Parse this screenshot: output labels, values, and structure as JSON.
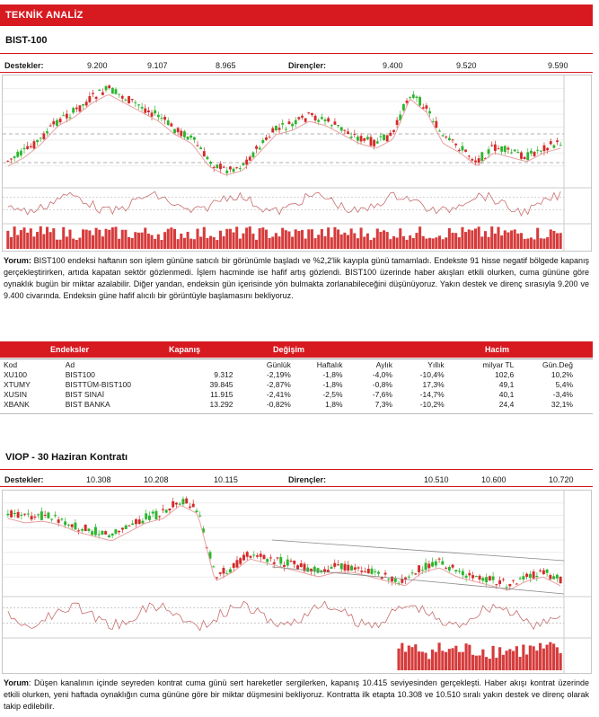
{
  "header": {
    "title": "TEKNİK ANALİZ"
  },
  "bist": {
    "title": "BIST-100",
    "support_label": "Destekler:",
    "supports": [
      "9.200",
      "9.107",
      "8.965"
    ],
    "resistance_label": "Dirençler:",
    "resistances": [
      "9.400",
      "9.520",
      "9.590"
    ],
    "comment_label": "Yorum:",
    "comment": "BIST100 endeksi haftanın son işlem gününe satıcılı bir görünümle başladı ve %2,2'lik kayıpla günü tamamladı. Endekste 91 hisse negatif bölgede kapanış gerçekleştirirken, artıda kapatan sektör gözlenmedi. İşlem hacminde ise hafif artış gözlendi. BIST100 üzerinde haber akışları etkili olurken, cuma gününe göre oynaklık bugün bir miktar azalabilir. Diğer yandan, endeksin gün içerisinde yön bulmakta zorlanabileceğini düşünüyoruz. Yakın destek ve direnç sırasıyla 9.200 ve 9.400 civarında. Endeksin güne hafif alıcılı bir görüntüyle başlamasını bekliyoruz."
  },
  "index_table": {
    "group_headers": {
      "endeksler": "Endeksler",
      "kapanis": "Kapanış",
      "degisim": "Değişim",
      "hacim": "Hacim"
    },
    "col_headers": {
      "kod": "Kod",
      "ad": "Ad",
      "gunluk": "Günlük",
      "haftalik": "Haftalık",
      "aylik": "Aylık",
      "yillik": "Yıllık",
      "milyar_tl": "milyar TL",
      "gun_deg": "Gün.Değ"
    },
    "rows": [
      {
        "kod": "XU100",
        "ad": "BIST100",
        "kapanis": "9.312",
        "gunluk": "-2,19%",
        "haftalik": "-1,8%",
        "aylik": "-4,0%",
        "yillik": "-10,4%",
        "hacim": "102,6",
        "gun_deg": "10,2%"
      },
      {
        "kod": "XTUMY",
        "ad": "BISTTÜM-BIST100",
        "kapanis": "39.845",
        "gunluk": "-2,87%",
        "haftalik": "-1,8%",
        "aylik": "-0,8%",
        "yillik": "17,3%",
        "hacim": "49,1",
        "gun_deg": "5,4%"
      },
      {
        "kod": "XUSIN",
        "ad": "BIST SINAİ",
        "kapanis": "11.915",
        "gunluk": "-2,41%",
        "haftalik": "-2,5%",
        "aylik": "-7,6%",
        "yillik": "-14,7%",
        "hacim": "40,1",
        "gun_deg": "-3,4%"
      },
      {
        "kod": "XBANK",
        "ad": "BIST BANKA",
        "kapanis": "13.292",
        "gunluk": "-0,82%",
        "haftalik": "1,8%",
        "aylik": "7,3%",
        "yillik": "-10,2%",
        "hacim": "24,4",
        "gun_deg": "32,1%"
      }
    ]
  },
  "viop": {
    "title": "VIOP - 30 Haziran Kontratı",
    "support_label": "Destekler:",
    "supports": [
      "10.308",
      "10.208",
      "10.115"
    ],
    "resistance_label": "Dirençler:",
    "resistances": [
      "10.510",
      "10.600",
      "10.720"
    ],
    "comment_label": "Yorum",
    "comment": ": Düşen kanalının içinde seyreden kontrat cuma günü sert hareketler sergilerken, kapanış 10.415 seviyesinden gerçekleşti. Haber akışı kontrat üzerinde etkili olurken, yeni haftada oynaklığın cuma gününe göre bir miktar düşmesini bekliyoruz. Kontratta ilk etapta 10.308 ve 10.510 sıralı yakın destek ve direnç olarak takip edilebilir."
  },
  "colors": {
    "brand_red": "#d71920",
    "up_candle": "#2db52d",
    "down_candle": "#d42a2a",
    "ma_line": "#e8a0a0",
    "volume": "#d63b3b"
  }
}
